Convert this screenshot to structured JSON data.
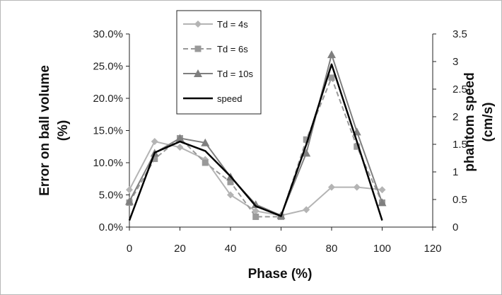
{
  "chart_data": {
    "type": "line",
    "title": "",
    "xlabel": "Phase (%)",
    "ylabel_left": "Error on ball volume (%)",
    "ylabel_right": "phantom speed (cm/s)",
    "xlim": [
      0,
      120
    ],
    "xticks": [
      0,
      20,
      40,
      60,
      80,
      100,
      120
    ],
    "ylim_left": [
      0,
      0.3
    ],
    "yticks_left": [
      "0.0%",
      "5.0%",
      "10.0%",
      "15.0%",
      "20.0%",
      "25.0%",
      "30.0%"
    ],
    "ylim_right": [
      0,
      3.5
    ],
    "yticks_right": [
      "0",
      "0.5",
      "1",
      "1.5",
      "2",
      "2.5",
      "3",
      "3.5"
    ],
    "grid": false,
    "legend_position": "top-center",
    "series": [
      {
        "name": "Td = 4s",
        "axis": "left",
        "marker": "diamond",
        "color": "#b4b4b4",
        "x": [
          0,
          10,
          20,
          30,
          40,
          50,
          60,
          70,
          80,
          90,
          100
        ],
        "values": [
          0.058,
          0.133,
          0.124,
          0.105,
          0.05,
          0.025,
          0.018,
          0.027,
          0.062,
          0.062,
          0.058
        ]
      },
      {
        "name": "Td = 6s",
        "axis": "left",
        "marker": "square",
        "color": "#999999",
        "dashed": true,
        "x": [
          0,
          10,
          20,
          30,
          40,
          50,
          60,
          70,
          80,
          90,
          100
        ],
        "values": [
          0.038,
          0.106,
          0.138,
          0.1,
          0.07,
          0.016,
          0.016,
          0.136,
          0.232,
          0.125,
          0.038
        ]
      },
      {
        "name": "Td = 10s",
        "axis": "left",
        "marker": "triangle",
        "color": "#7f7f7f",
        "x": [
          0,
          10,
          20,
          30,
          40,
          50,
          60,
          70,
          80,
          90,
          100
        ],
        "values": [
          0.04,
          0.115,
          0.138,
          0.131,
          0.078,
          0.035,
          0.018,
          0.115,
          0.268,
          0.148,
          0.038
        ]
      },
      {
        "name": "speed",
        "axis": "right",
        "marker": "none",
        "color": "#000000",
        "x": [
          0,
          10,
          20,
          30,
          40,
          50,
          60,
          70,
          80,
          90,
          100
        ],
        "values": [
          0.12,
          1.35,
          1.55,
          1.38,
          0.92,
          0.38,
          0.2,
          1.5,
          2.95,
          1.55,
          0.12
        ]
      }
    ]
  }
}
